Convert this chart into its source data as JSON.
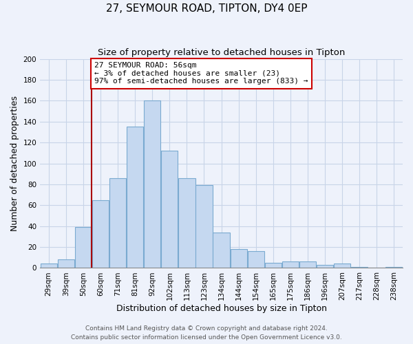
{
  "title": "27, SEYMOUR ROAD, TIPTON, DY4 0EP",
  "subtitle": "Size of property relative to detached houses in Tipton",
  "xlabel": "Distribution of detached houses by size in Tipton",
  "ylabel": "Number of detached properties",
  "categories": [
    "29sqm",
    "39sqm",
    "50sqm",
    "60sqm",
    "71sqm",
    "81sqm",
    "92sqm",
    "102sqm",
    "113sqm",
    "123sqm",
    "134sqm",
    "144sqm",
    "154sqm",
    "165sqm",
    "175sqm",
    "186sqm",
    "196sqm",
    "207sqm",
    "217sqm",
    "228sqm",
    "238sqm"
  ],
  "values": [
    4,
    8,
    39,
    65,
    86,
    135,
    160,
    112,
    86,
    79,
    34,
    18,
    16,
    5,
    6,
    6,
    3,
    4,
    1,
    0,
    1
  ],
  "bar_color": "#c5d8f0",
  "bar_edge_color": "#7aaad0",
  "vline_x_index": 2,
  "vline_color": "#aa0000",
  "annotation_line1": "27 SEYMOUR ROAD: 56sqm",
  "annotation_line2": "← 3% of detached houses are smaller (23)",
  "annotation_line3": "97% of semi-detached houses are larger (833) →",
  "annotation_box_color": "#ffffff",
  "annotation_box_edge_color": "#cc0000",
  "ylim": [
    0,
    200
  ],
  "yticks": [
    0,
    20,
    40,
    60,
    80,
    100,
    120,
    140,
    160,
    180,
    200
  ],
  "footer1": "Contains HM Land Registry data © Crown copyright and database right 2024.",
  "footer2": "Contains public sector information licensed under the Open Government Licence v3.0.",
  "background_color": "#eef2fb",
  "grid_color": "#c8d4e8",
  "title_fontsize": 11,
  "subtitle_fontsize": 9.5,
  "axis_label_fontsize": 9,
  "tick_fontsize": 7.5,
  "footer_fontsize": 6.5
}
